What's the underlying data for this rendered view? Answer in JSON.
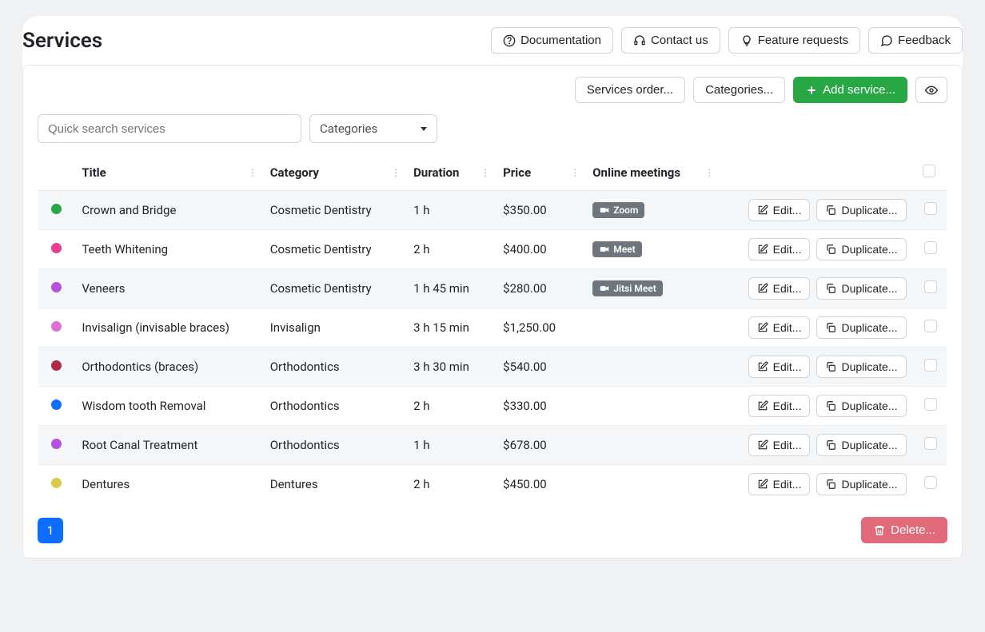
{
  "page": {
    "title": "Services",
    "headerButtons": {
      "documentation": "Documentation",
      "contact": "Contact us",
      "feature": "Feature requests",
      "feedback": "Feedback"
    }
  },
  "toolbar": {
    "servicesOrder": "Services order...",
    "categories": "Categories...",
    "addService": "Add service...",
    "search_placeholder": "Quick search services",
    "categoriesSelect": "Categories"
  },
  "columns": {
    "title": "Title",
    "category": "Category",
    "duration": "Duration",
    "price": "Price",
    "meetings": "Online meetings"
  },
  "actions": {
    "edit": "Edit...",
    "duplicate": "Duplicate...",
    "delete": "Delete..."
  },
  "pagination": {
    "page": "1"
  },
  "rows": [
    {
      "color": "#28a745",
      "title": "Crown and Bridge",
      "category": "Cosmetic Dentistry",
      "duration": "1 h",
      "price": "$350.00",
      "meeting": "Zoom"
    },
    {
      "color": "#e83e8c",
      "title": "Teeth Whitening",
      "category": "Cosmetic Dentistry",
      "duration": "2 h",
      "price": "$400.00",
      "meeting": "Meet"
    },
    {
      "color": "#b84fe0",
      "title": "Veneers",
      "category": "Cosmetic Dentistry",
      "duration": "1 h 45 min",
      "price": "$280.00",
      "meeting": "Jitsi Meet"
    },
    {
      "color": "#e06ed8",
      "title": "Invisalign (invisable braces)",
      "category": "Invisalign",
      "duration": "3 h 15 min",
      "price": "$1,250.00",
      "meeting": ""
    },
    {
      "color": "#b02a4c",
      "title": "Orthodontics (braces)",
      "category": "Orthodontics",
      "duration": "3 h 30 min",
      "price": "$540.00",
      "meeting": ""
    },
    {
      "color": "#0d6efd",
      "title": "Wisdom tooth Removal",
      "category": "Orthodontics",
      "duration": "2 h",
      "price": "$330.00",
      "meeting": ""
    },
    {
      "color": "#b84fe0",
      "title": "Root Canal Treatment",
      "category": "Orthodontics",
      "duration": "1 h",
      "price": "$678.00",
      "meeting": ""
    },
    {
      "color": "#d9c94c",
      "title": "Dentures",
      "category": "Dentures",
      "duration": "2 h",
      "price": "$450.00",
      "meeting": ""
    }
  ],
  "styling": {
    "badge_bg": "#6f757c",
    "badge_fg": "#ffffff",
    "row_odd_bg": "#f5f6f7",
    "row_even_bg": "#ffffff",
    "border_color": "#e5e7eb",
    "primary_blue": "#0d6efd",
    "green": "#28a745",
    "delete_pink": "#e06a7a"
  }
}
